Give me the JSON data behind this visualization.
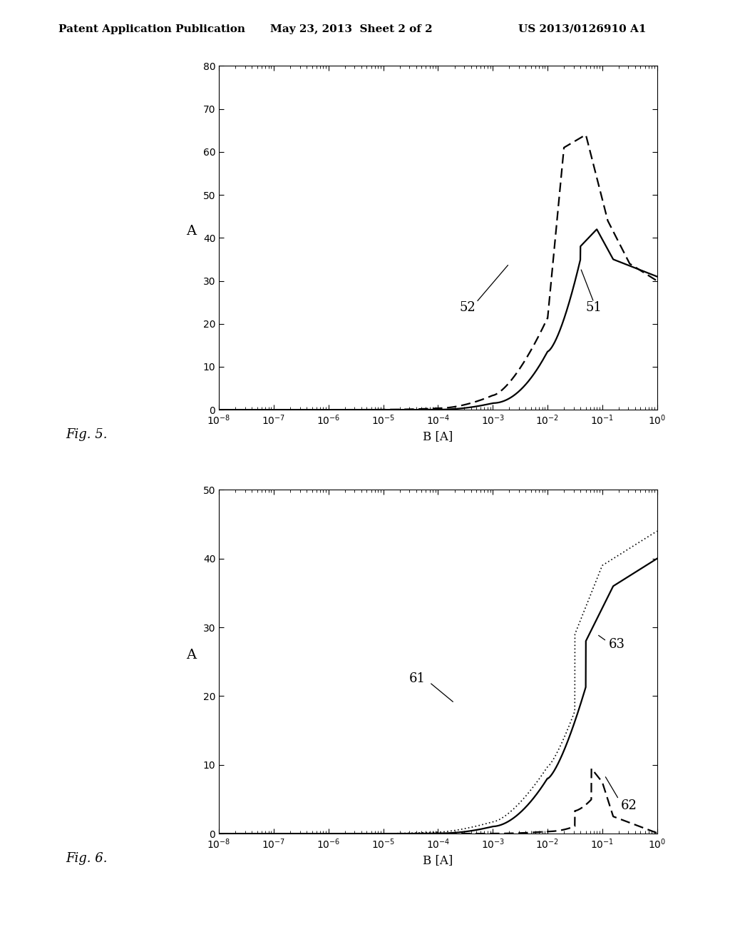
{
  "header_left": "Patent Application Publication",
  "header_mid": "May 23, 2013  Sheet 2 of 2",
  "header_right": "US 2013/0126910 A1",
  "fig5_ylabel": "A",
  "fig5_xlabel": "B [A]",
  "fig5_figname": "Fig. 5.",
  "fig5_ylim": [
    0,
    80
  ],
  "fig5_yticks": [
    0,
    10,
    20,
    30,
    40,
    50,
    60,
    70,
    80
  ],
  "fig5_label51": "51",
  "fig5_label52": "52",
  "fig6_ylabel": "A",
  "fig6_xlabel": "B [A]",
  "fig6_figname": "Fig. 6.",
  "fig6_ylim": [
    0,
    50
  ],
  "fig6_yticks": [
    0,
    10,
    20,
    30,
    40,
    50
  ],
  "fig6_label61": "61",
  "fig6_label62": "62",
  "fig6_label63": "63",
  "bg_color": "#ffffff",
  "text_color": "#000000"
}
